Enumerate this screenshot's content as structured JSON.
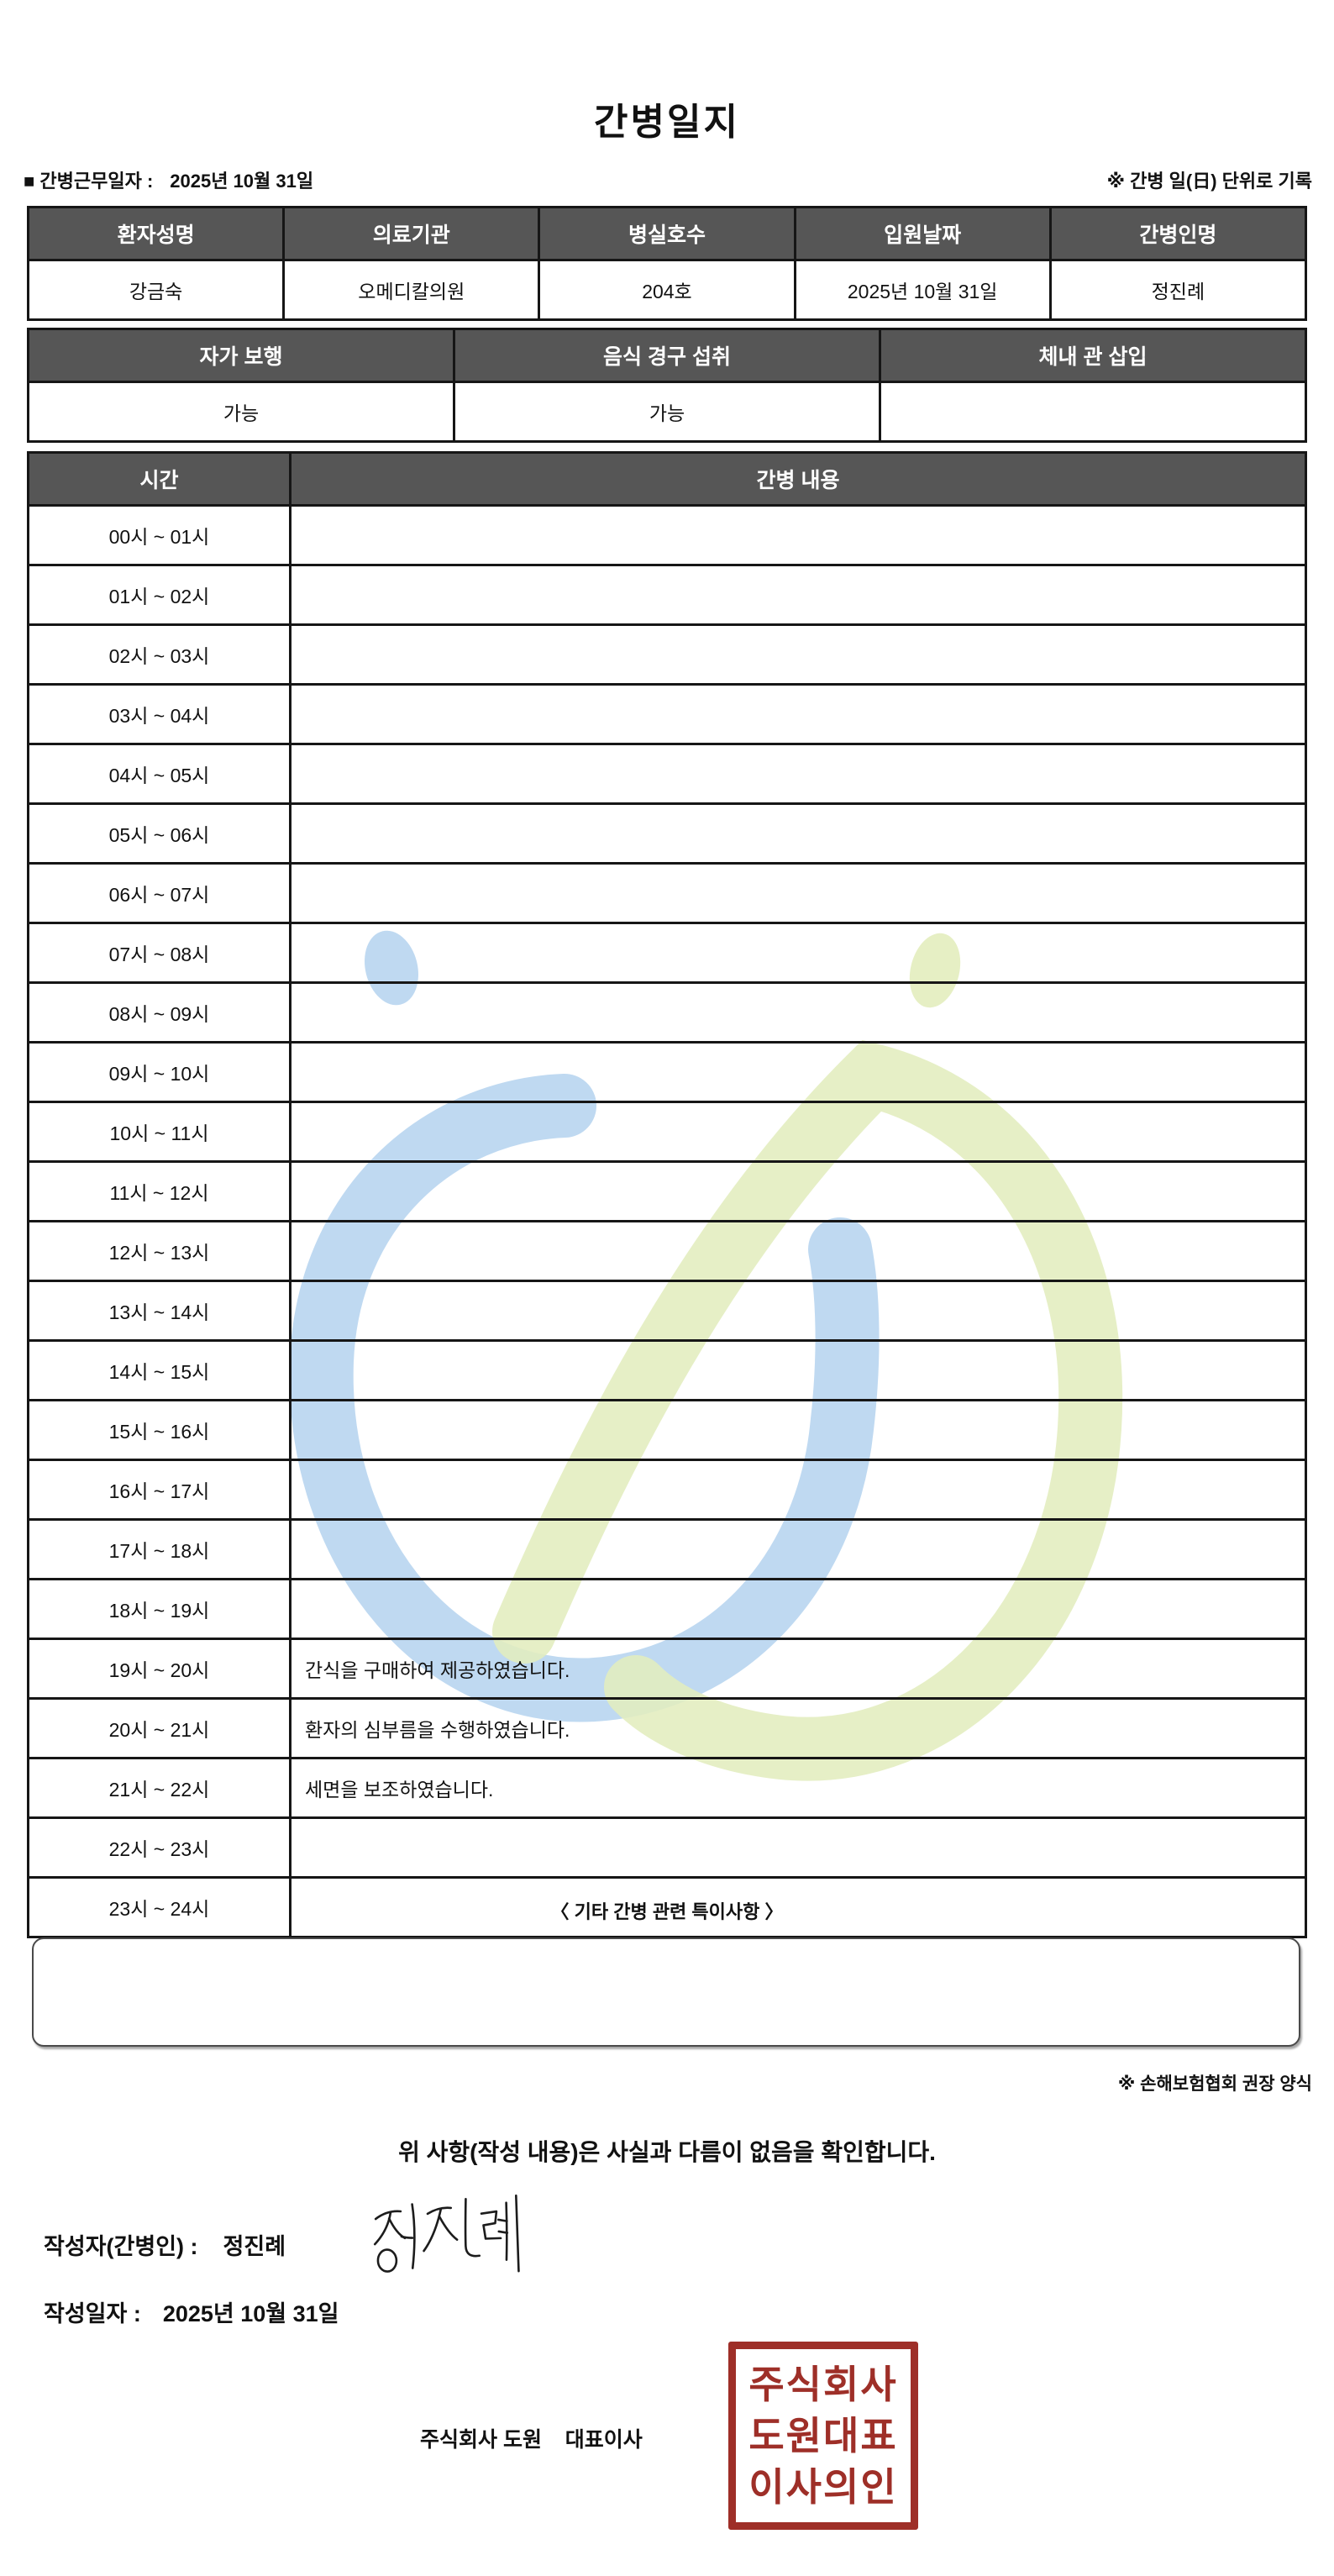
{
  "title": "간병일지",
  "meta": {
    "work_date_label": "■ 간병근무일자 :",
    "work_date_value": "2025년 10월 31일",
    "unit_note": "※ 간병 일(日) 단위로 기록"
  },
  "info_table": {
    "headers": [
      "환자성명",
      "의료기관",
      "병실호수",
      "입원날짜",
      "간병인명"
    ],
    "values": [
      "강금숙",
      "오메디칼의원",
      "204호",
      "2025년 10월 31일",
      "정진례"
    ]
  },
  "status_table": {
    "headers": [
      "자가 보행",
      "음식 경구 섭취",
      "체내 관 삽입"
    ],
    "values": [
      "가능",
      "가능",
      ""
    ]
  },
  "care_table": {
    "time_header": "시간",
    "content_header": "간병 내용",
    "rows": [
      {
        "time": "00시 ~ 01시",
        "content": ""
      },
      {
        "time": "01시 ~ 02시",
        "content": ""
      },
      {
        "time": "02시 ~ 03시",
        "content": ""
      },
      {
        "time": "03시 ~ 04시",
        "content": ""
      },
      {
        "time": "04시 ~ 05시",
        "content": ""
      },
      {
        "time": "05시 ~ 06시",
        "content": ""
      },
      {
        "time": "06시 ~ 07시",
        "content": ""
      },
      {
        "time": "07시 ~ 08시",
        "content": ""
      },
      {
        "time": "08시 ~ 09시",
        "content": ""
      },
      {
        "time": "09시 ~ 10시",
        "content": ""
      },
      {
        "time": "10시 ~ 11시",
        "content": ""
      },
      {
        "time": "11시 ~ 12시",
        "content": ""
      },
      {
        "time": "12시 ~ 13시",
        "content": ""
      },
      {
        "time": "13시 ~ 14시",
        "content": ""
      },
      {
        "time": "14시 ~ 15시",
        "content": ""
      },
      {
        "time": "15시 ~ 16시",
        "content": ""
      },
      {
        "time": "16시 ~ 17시",
        "content": ""
      },
      {
        "time": "17시 ~ 18시",
        "content": ""
      },
      {
        "time": "18시 ~ 19시",
        "content": ""
      },
      {
        "time": "19시 ~ 20시",
        "content": "간식을 구매하여 제공하였습니다."
      },
      {
        "time": "20시 ~ 21시",
        "content": "환자의 심부름을 수행하였습니다."
      },
      {
        "time": "21시 ~ 22시",
        "content": "세면을 보조하였습니다."
      },
      {
        "time": "22시 ~ 23시",
        "content": ""
      },
      {
        "time": "23시 ~ 24시",
        "content": ""
      }
    ]
  },
  "notes": {
    "title": "〈 기타 간병 관련 특이사항 〉",
    "content": "",
    "form_note": "※ 손해보험협회 권장 양식"
  },
  "footer": {
    "confirmation": "위 사항(작성 내용)은 사실과 다름이 없음을 확인합니다.",
    "writer_label": "작성자(간병인) :",
    "writer_name": "정진례",
    "date_label": "작성일자 :",
    "date_value": "2025년 10월 31일",
    "company_line": "주식회사 도원    대표이사",
    "stamp_lines": [
      "주식회사",
      "도원대표",
      "이사의인"
    ]
  },
  "colors": {
    "header_bg": "#565656",
    "border": "#161616",
    "stamp": "#9E2F28",
    "wm_blue": "#BCD7F0",
    "wm_green": "#E3EDBE",
    "signature_ink": "#1c1c1c"
  }
}
